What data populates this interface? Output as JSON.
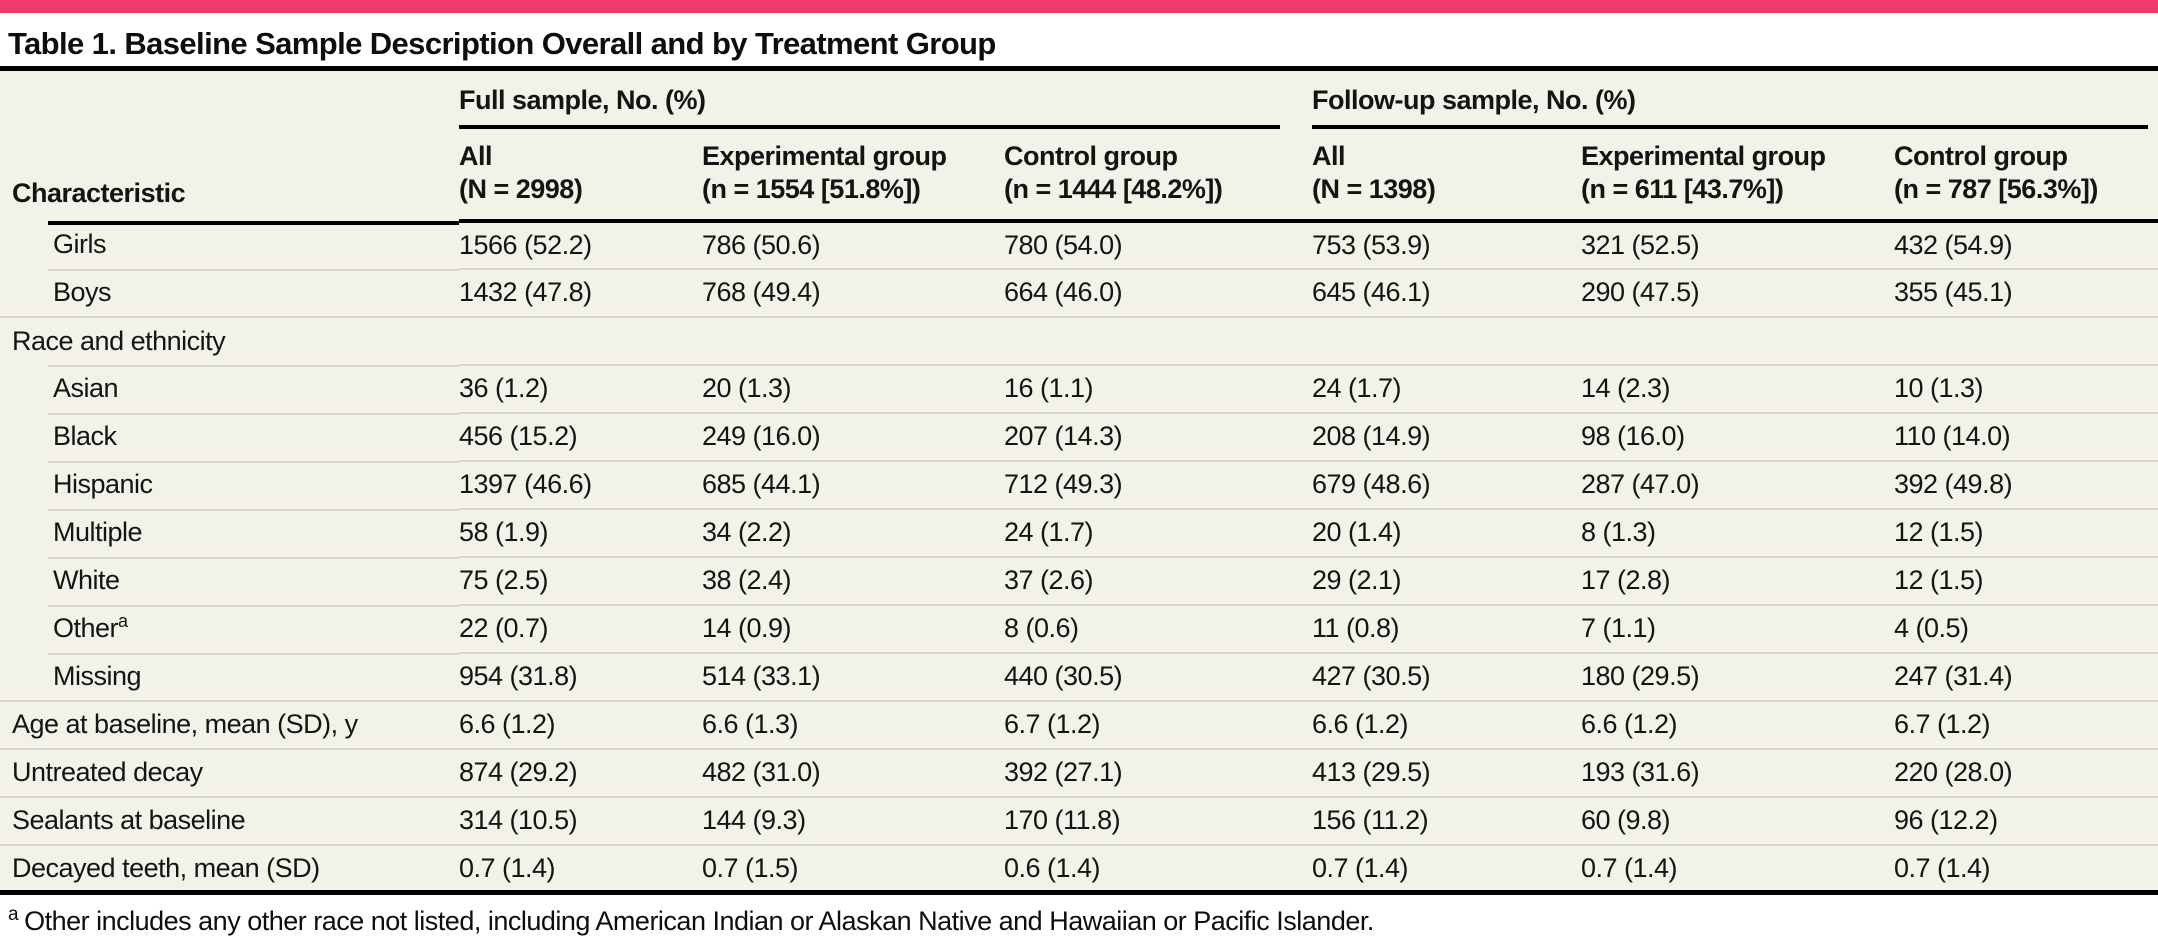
{
  "accent_color": "#ef3a6d",
  "table_background_color": "#f3f2e8",
  "rule_color": "#d8d5c4",
  "title": "Table 1. Baseline Sample Description Overall and by Treatment Group",
  "table": {
    "row_header": "Characteristic",
    "groups": [
      {
        "label": "Full sample, No. (%)"
      },
      {
        "label": "Follow-up sample, No. (%)"
      }
    ],
    "columns": [
      {
        "line1": "All",
        "line2": "(N = 2998)"
      },
      {
        "line1": "Experimental group",
        "line2": "(n = 1554 [51.8%])"
      },
      {
        "line1": "Control group",
        "line2": "(n = 1444 [48.2%])"
      },
      {
        "line1": "All",
        "line2": "(N = 1398)"
      },
      {
        "line1": "Experimental group",
        "line2": "(n = 611 [43.7%])"
      },
      {
        "line1": "Control group",
        "line2": "(n = 787 [56.3%])"
      }
    ],
    "rows": [
      {
        "label": "Girls",
        "indent": true,
        "values": [
          "1566 (52.2)",
          "786 (50.6)",
          "780 (54.0)",
          "753 (53.9)",
          "321 (52.5)",
          "432 (54.9)"
        ]
      },
      {
        "label": "Boys",
        "indent": true,
        "values": [
          "1432 (47.8)",
          "768 (49.4)",
          "664 (46.0)",
          "645 (46.1)",
          "290 (47.5)",
          "355 (45.1)"
        ]
      },
      {
        "label": "Race and ethnicity",
        "indent": false,
        "values": [
          "",
          "",
          "",
          "",
          "",
          ""
        ]
      },
      {
        "label": "Asian",
        "indent": true,
        "values": [
          "36 (1.2)",
          "20 (1.3)",
          "16 (1.1)",
          "24 (1.7)",
          "14 (2.3)",
          "10 (1.3)"
        ]
      },
      {
        "label": "Black",
        "indent": true,
        "values": [
          "456 (15.2)",
          "249 (16.0)",
          "207 (14.3)",
          "208 (14.9)",
          "98 (16.0)",
          "110 (14.0)"
        ]
      },
      {
        "label": "Hispanic",
        "indent": true,
        "values": [
          "1397 (46.6)",
          "685 (44.1)",
          "712 (49.3)",
          "679 (48.6)",
          "287 (47.0)",
          "392 (49.8)"
        ]
      },
      {
        "label": "Multiple",
        "indent": true,
        "values": [
          "58 (1.9)",
          "34 (2.2)",
          "24 (1.7)",
          "20 (1.4)",
          "8 (1.3)",
          "12 (1.5)"
        ]
      },
      {
        "label": "White",
        "indent": true,
        "values": [
          "75 (2.5)",
          "38 (2.4)",
          "37 (2.6)",
          "29 (2.1)",
          "17 (2.8)",
          "12 (1.5)"
        ]
      },
      {
        "label": "Other",
        "sup": "a",
        "indent": true,
        "values": [
          "22 (0.7)",
          "14 (0.9)",
          "8 (0.6)",
          "11 (0.8)",
          "7 (1.1)",
          "4 (0.5)"
        ]
      },
      {
        "label": "Missing",
        "indent": true,
        "values": [
          "954 (31.8)",
          "514 (33.1)",
          "440 (30.5)",
          "427 (30.5)",
          "180 (29.5)",
          "247 (31.4)"
        ]
      },
      {
        "label": "Age at baseline, mean (SD), y",
        "indent": false,
        "values": [
          "6.6 (1.2)",
          "6.6 (1.3)",
          "6.7 (1.2)",
          "6.6 (1.2)",
          "6.6 (1.2)",
          "6.7 (1.2)"
        ]
      },
      {
        "label": "Untreated decay",
        "indent": false,
        "values": [
          "874 (29.2)",
          "482 (31.0)",
          "392 (27.1)",
          "413 (29.5)",
          "193 (31.6)",
          "220 (28.0)"
        ]
      },
      {
        "label": "Sealants at baseline",
        "indent": false,
        "values": [
          "314 (10.5)",
          "144 (9.3)",
          "170 (11.8)",
          "156 (11.2)",
          "60 (9.8)",
          "96 (12.2)"
        ]
      },
      {
        "label": "Decayed teeth, mean (SD)",
        "indent": false,
        "values": [
          "0.7 (1.4)",
          "0.7 (1.5)",
          "0.6 (1.4)",
          "0.7 (1.4)",
          "0.7 (1.4)",
          "0.7 (1.4)"
        ]
      }
    ]
  },
  "footnote": {
    "marker": "a",
    "text": "Other includes any other race not listed, including American Indian or Alaskan Native and Hawaiian or Pacific Islander."
  }
}
